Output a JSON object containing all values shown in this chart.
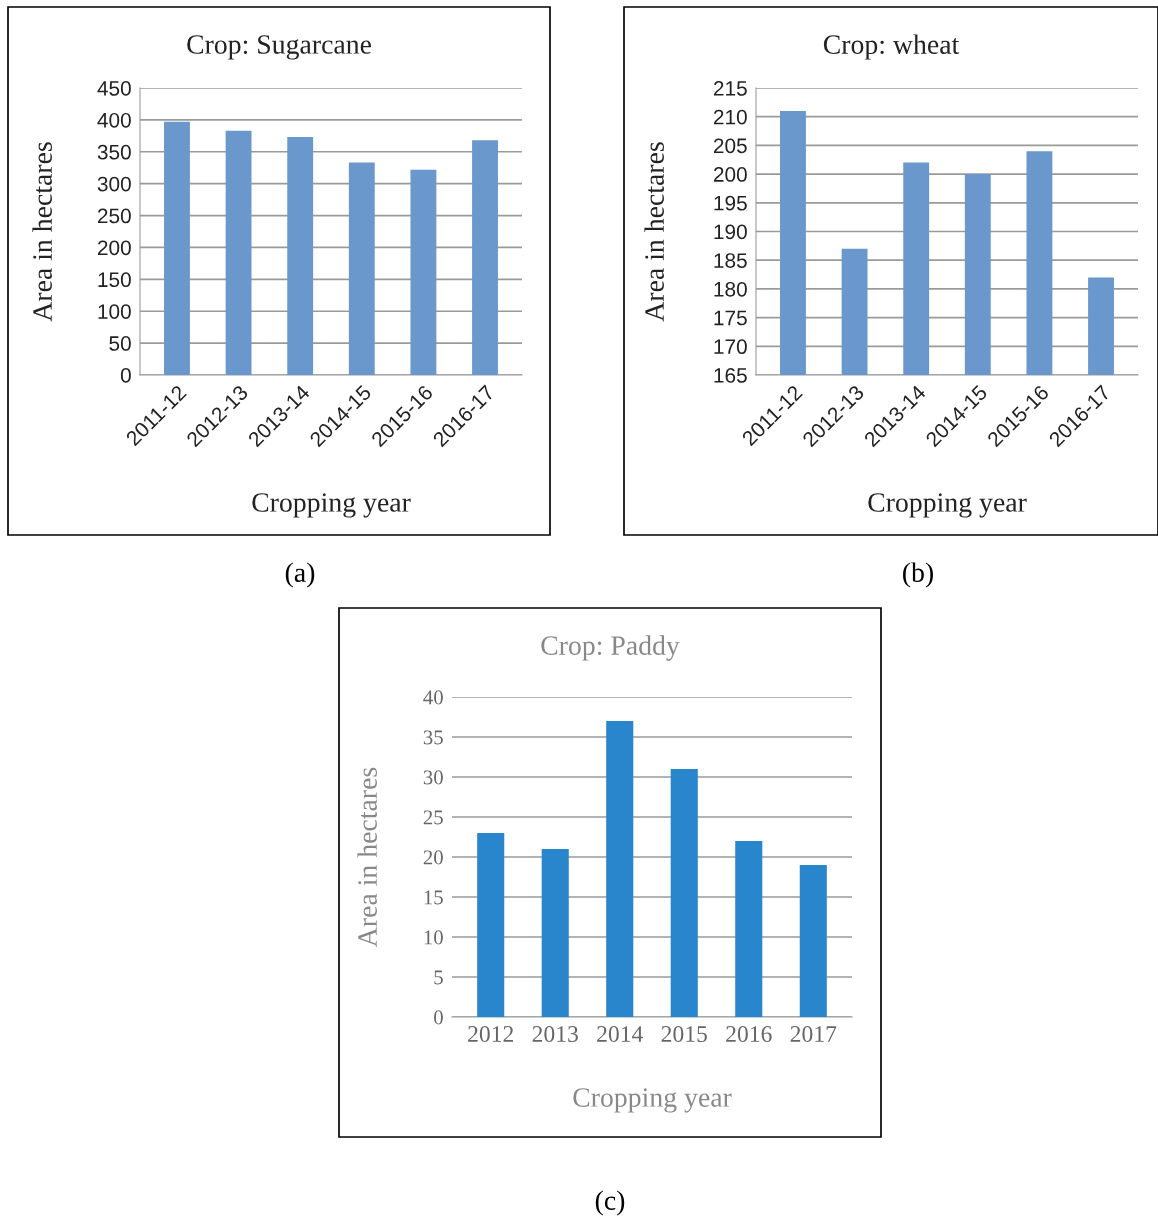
{
  "chart_data": [
    {
      "type": "bar",
      "title": "Crop: Sugarcane",
      "xlabel": "Cropping year",
      "ylabel": "Area in hectares",
      "categories": [
        "2011-12",
        "2012-13",
        "2013-14",
        "2014-15",
        "2015-16",
        "2016-17"
      ],
      "values": [
        397,
        383,
        373,
        333,
        322,
        368
      ],
      "color": "#6a98cc",
      "ylim": [
        0,
        450
      ],
      "yticks": [
        0,
        50,
        100,
        150,
        200,
        250,
        300,
        350,
        400,
        450
      ],
      "grid": "y",
      "annotations": [
        "(a)"
      ]
    },
    {
      "type": "bar",
      "title": "Crop: wheat",
      "xlabel": "Cropping year",
      "ylabel": "Area in hectares",
      "categories": [
        "2011-12",
        "2012-13",
        "2013-14",
        "2014-15",
        "2015-16",
        "2016-17"
      ],
      "values": [
        211,
        187,
        202,
        200,
        204,
        182
      ],
      "color": "#6a98cc",
      "ylim": [
        165,
        215
      ],
      "yticks": [
        165,
        170,
        175,
        180,
        185,
        190,
        195,
        200,
        205,
        210,
        215
      ],
      "grid": "y",
      "annotations": [
        "(b)"
      ]
    },
    {
      "type": "bar",
      "title": "Crop: Paddy",
      "xlabel": "Cropping year",
      "ylabel": "Area in hectares",
      "categories": [
        "2012",
        "2013",
        "2014",
        "2015",
        "2016",
        "2017"
      ],
      "values": [
        23,
        21,
        37,
        31,
        22,
        19
      ],
      "color": "#2a86cc",
      "ylim": [
        0,
        40
      ],
      "yticks": [
        0,
        5,
        10,
        15,
        20,
        25,
        30,
        35,
        40
      ],
      "grid": "y",
      "annotations": [
        "(c)"
      ]
    }
  ]
}
